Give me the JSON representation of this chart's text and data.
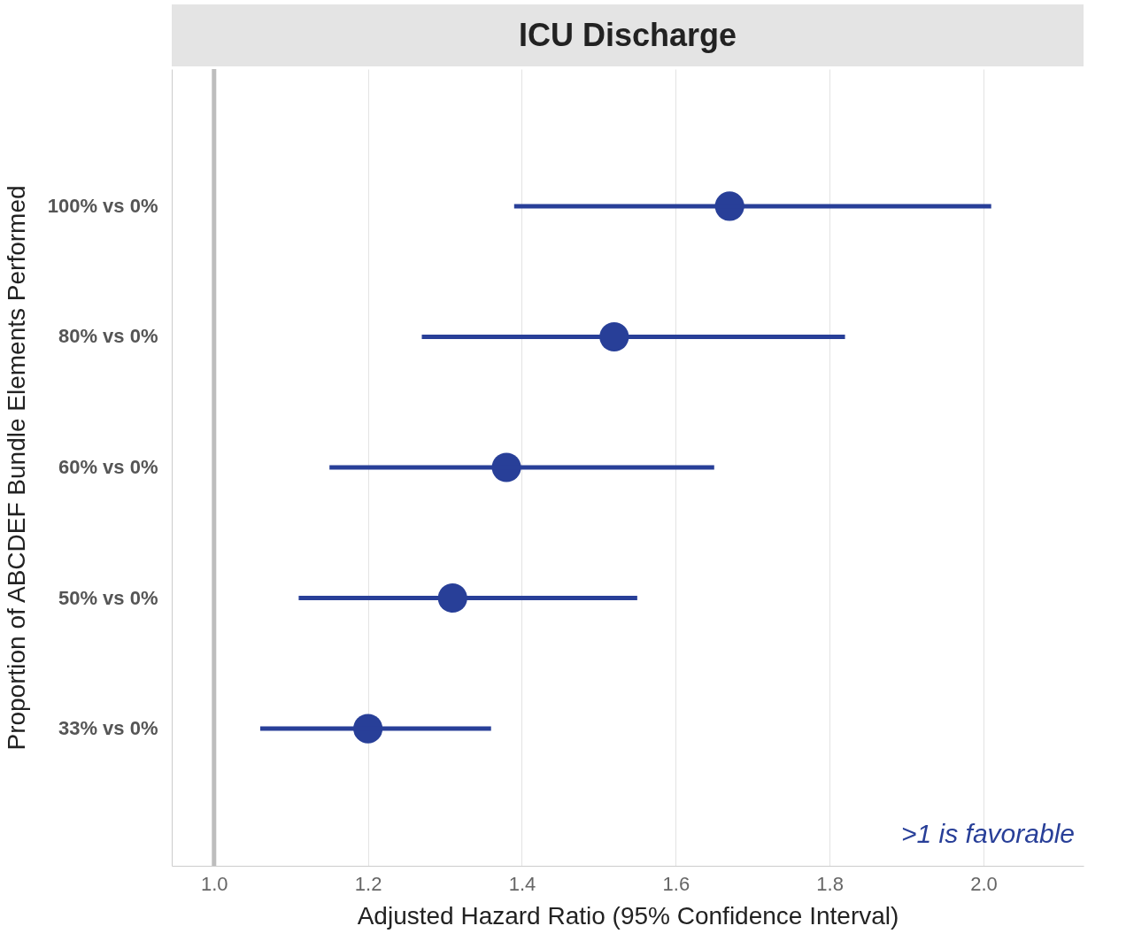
{
  "chart_data": {
    "type": "scatter",
    "orientation": "horizontal",
    "title": "ICU Discharge",
    "xlabel": "Adjusted Hazard Ratio (95% Confidence Interval)",
    "ylabel": "Proportion of ABCDEF Bundle Elements Performed",
    "categories": [
      "100% vs 0%",
      "80% vs 0%",
      "60% vs 0%",
      "50% vs 0%",
      "33% vs 0%"
    ],
    "series": [
      {
        "color": "#283f98",
        "values": [
          1.67,
          1.52,
          1.38,
          1.31,
          1.2
        ],
        "errors": [
          [
            1.39,
            2.01
          ],
          [
            1.27,
            1.82
          ],
          [
            1.15,
            1.65
          ],
          [
            1.11,
            1.55
          ],
          [
            1.06,
            1.36
          ]
        ]
      }
    ],
    "xlim": [
      0.945,
      2.13
    ],
    "xticks": [
      {
        "value": 1.0,
        "label": "1.0"
      },
      {
        "value": 1.2,
        "label": "1.2"
      },
      {
        "value": 1.4,
        "label": "1.4"
      },
      {
        "value": 1.6,
        "label": "1.6"
      },
      {
        "value": 1.8,
        "label": "1.8"
      },
      {
        "value": 2.0,
        "label": "2.0"
      }
    ],
    "ref_lines": [
      {
        "axis": "x",
        "value": 1.0,
        "color": "#bdbdbd"
      }
    ],
    "annotations": [
      ">1 is favorable"
    ],
    "grid": "x",
    "marker": "circle",
    "legend": false
  }
}
